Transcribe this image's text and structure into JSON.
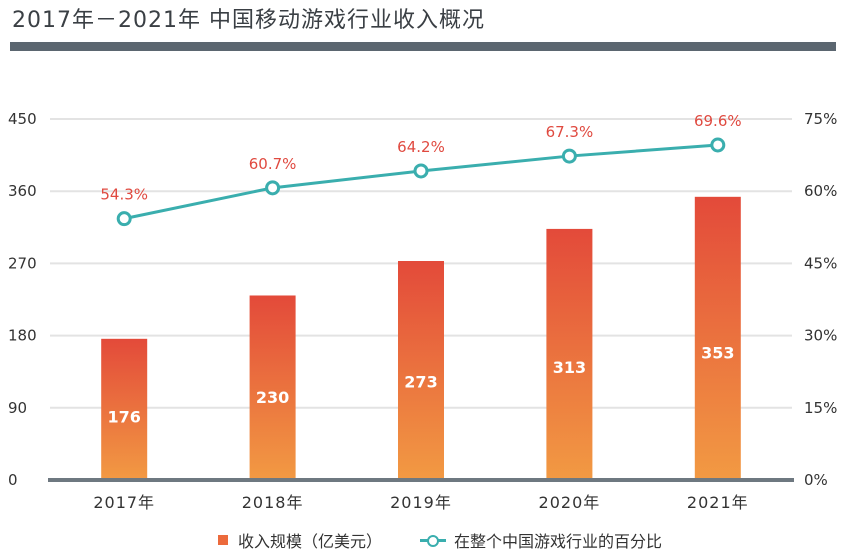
{
  "header": {
    "title": "2017年－2021年 中国移动游戏行业收入概况"
  },
  "colors": {
    "bar_top": "#e34a3a",
    "bar_bottom": "#f29a43",
    "line": "#3aaeae",
    "pct_label": "#e04a40",
    "grid": "#e3e3e3",
    "axis": "#6e7880",
    "title_bar": "#5b6670"
  },
  "chart_data": {
    "type": "bar",
    "categories": [
      "2017年",
      "2018年",
      "2019年",
      "2020年",
      "2021年"
    ],
    "series": [
      {
        "name": "收入规模（亿美元）",
        "type": "bar",
        "axis": "left",
        "values": [
          176,
          230,
          273,
          313,
          353
        ],
        "labels": [
          "176",
          "230",
          "273",
          "313",
          "353"
        ]
      },
      {
        "name": "在整个中国游戏行业的百分比",
        "type": "line",
        "axis": "right",
        "values": [
          54.3,
          60.7,
          64.2,
          67.3,
          69.6
        ],
        "labels": [
          "54.3%",
          "60.7%",
          "64.2%",
          "67.3%",
          "69.6%"
        ]
      }
    ],
    "y_left": {
      "min": 0,
      "max": 450,
      "ticks": [
        "0",
        "90",
        "180",
        "270",
        "360",
        "450"
      ]
    },
    "y_right": {
      "min": 0,
      "max": 75,
      "ticks": [
        "0%",
        "15%",
        "30%",
        "45%",
        "60%",
        "75%"
      ]
    },
    "grid": true,
    "legend_position": "bottom"
  }
}
